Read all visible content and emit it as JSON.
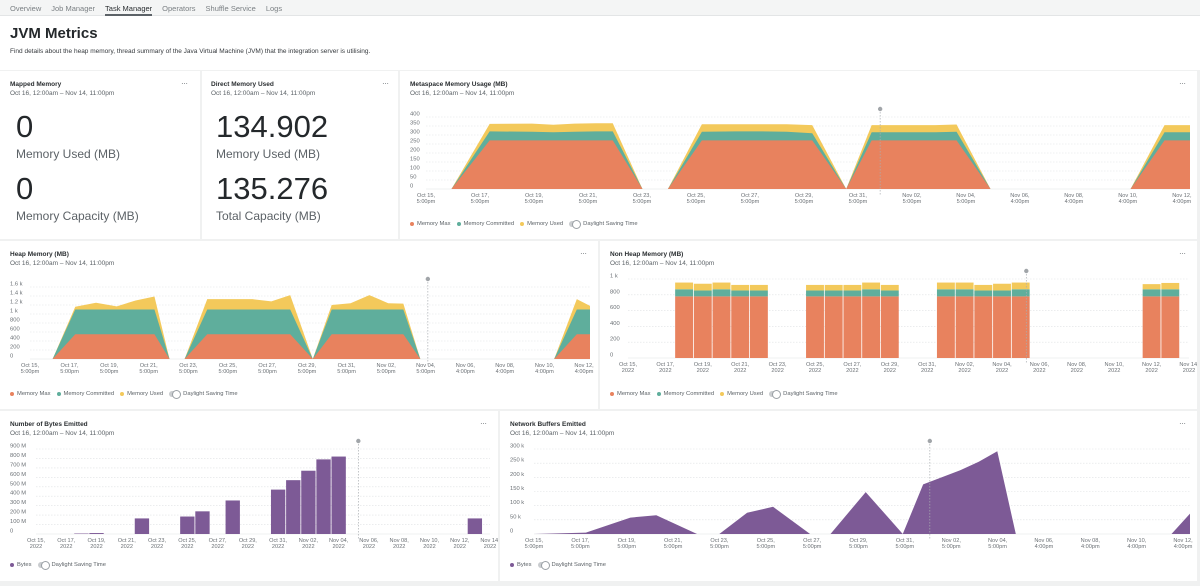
{
  "tabs": [
    {
      "label": "Overview",
      "active": false
    },
    {
      "label": "Job Manager",
      "active": false
    },
    {
      "label": "Task Manager",
      "active": true
    },
    {
      "label": "Operators",
      "active": false
    },
    {
      "label": "Shuffle Service",
      "active": false
    },
    {
      "label": "Logs",
      "active": false
    }
  ],
  "header": {
    "title": "JVM Metrics",
    "description": "Find details about the heap memory, thread summary of the Java Virtual Machine (JVM) that the integration server is utilising."
  },
  "colors": {
    "memory_max": "#e8825e",
    "memory_committed": "#5fae9c",
    "memory_used": "#f3c95b",
    "bytes": "#7d5a96",
    "grid": "#dfe1e3",
    "axis_text": "#6b7075"
  },
  "date_range": "Oct 16, 12:00am – Nov 14, 11:00pm",
  "more_label": "···",
  "toggle_label": "Daylight Saving Time",
  "mapped_memory": {
    "title": "Mapped Memory",
    "value1": "0",
    "label1": "Memory Used (MB)",
    "value2": "0",
    "label2": "Memory Capacity (MB)"
  },
  "direct_memory": {
    "title": "Direct Memory Used",
    "value1": "134.902",
    "label1": "Memory Used (MB)",
    "value2": "135.276",
    "label2": "Total Capacity (MB)"
  },
  "chart_data": [
    {
      "id": "metaspace",
      "type": "area",
      "title": "Metaspace Memory Usage (MB)",
      "subtitle": "Oct 16, 12:00am – Nov 14, 11:00pm",
      "ylim": [
        0,
        400
      ],
      "yticks": [
        "0",
        "50",
        "100",
        "150",
        "200",
        "250",
        "300",
        "350",
        "400"
      ],
      "ytick_values": [
        0,
        50,
        100,
        150,
        200,
        250,
        300,
        350,
        400
      ],
      "xticks": [
        [
          "Oct 15,",
          "5:00pm"
        ],
        [
          "Oct 17,",
          "5:00pm"
        ],
        [
          "Oct 19,",
          "5:00pm"
        ],
        [
          "Oct 21,",
          "5:00pm"
        ],
        [
          "Oct 23,",
          "5:00pm"
        ],
        [
          "Oct 25,",
          "5:00pm"
        ],
        [
          "Oct 27,",
          "5:00pm"
        ],
        [
          "Oct 29,",
          "5:00pm"
        ],
        [
          "Oct 31,",
          "5:00pm"
        ],
        [
          "Nov 02,",
          "5:00pm"
        ],
        [
          "Nov 04,",
          "5:00pm"
        ],
        [
          "Nov 06,",
          "4:00pm"
        ],
        [
          "Nov 08,",
          "4:00pm"
        ],
        [
          "Nov 10,",
          "4:00pm"
        ],
        [
          "Nov 12,",
          "4:00pm"
        ]
      ],
      "marker_x": 10.7,
      "segments": [
        {
          "x": [
            0.6,
            1.5,
            2.5,
            3.0,
            3.5,
            4.0,
            4.4,
            5.1
          ],
          "max": [
            0,
            270,
            270,
            270,
            270,
            270,
            270,
            0
          ],
          "committed": [
            0,
            50,
            48,
            45,
            48,
            50,
            50,
            0
          ],
          "used": [
            0,
            42,
            45,
            42,
            45,
            45,
            45,
            0
          ]
        },
        {
          "x": [
            5.7,
            6.5,
            7.3,
            7.9,
            8.5,
            9.1,
            9.9
          ],
          "max": [
            0,
            270,
            270,
            270,
            270,
            270,
            0
          ],
          "committed": [
            0,
            48,
            50,
            50,
            48,
            40,
            0
          ],
          "used": [
            0,
            42,
            40,
            40,
            42,
            45,
            0
          ]
        },
        {
          "x": [
            9.9,
            10.5,
            11.3,
            12.0,
            12.5,
            13.3
          ],
          "max": [
            0,
            270,
            270,
            270,
            270,
            0
          ],
          "committed": [
            0,
            45,
            45,
            45,
            48,
            0
          ],
          "used": [
            0,
            40,
            40,
            40,
            40,
            0
          ]
        },
        {
          "x": [
            16.6,
            17.4,
            18.0
          ],
          "max": [
            0,
            270,
            270
          ],
          "committed": [
            0,
            45,
            45
          ],
          "used": [
            0,
            40,
            40
          ]
        }
      ],
      "xlim": [
        0,
        18.0
      ],
      "legend": [
        "Memory Max",
        "Memory Committed",
        "Memory Used"
      ]
    },
    {
      "id": "heap",
      "type": "area",
      "title": "Heap Memory (MB)",
      "subtitle": "Oct 16, 12:00am – Nov 14, 11:00pm",
      "ylim": [
        0,
        1600
      ],
      "yticks": [
        "0",
        "200",
        "400",
        "600",
        "800",
        "1 k",
        "1.2 k",
        "1.4 k",
        "1.6 k"
      ],
      "ytick_values": [
        0,
        200,
        400,
        600,
        800,
        1000,
        1200,
        1400,
        1600
      ],
      "xticks": [
        [
          "Oct 15,",
          "5:00pm"
        ],
        [
          "Oct 17,",
          "5:00pm"
        ],
        [
          "Oct 19,",
          "5:00pm"
        ],
        [
          "Oct 21,",
          "5:00pm"
        ],
        [
          "Oct 23,",
          "5:00pm"
        ],
        [
          "Oct 25,",
          "5:00pm"
        ],
        [
          "Oct 27,",
          "5:00pm"
        ],
        [
          "Oct 29,",
          "5:00pm"
        ],
        [
          "Oct 31,",
          "5:00pm"
        ],
        [
          "Nov 02,",
          "5:00pm"
        ],
        [
          "Nov 04,",
          "5:00pm"
        ],
        [
          "Nov 06,",
          "4:00pm"
        ],
        [
          "Nov 08,",
          "4:00pm"
        ],
        [
          "Nov 10,",
          "4:00pm"
        ],
        [
          "Nov 12,",
          "4:00pm"
        ]
      ],
      "marker_x": 10.55,
      "segments": [
        {
          "x": [
            0.6,
            1.2,
            1.75,
            2.3,
            2.8,
            3.3,
            3.7
          ],
          "max": [
            0,
            550,
            550,
            550,
            550,
            550,
            0
          ],
          "committed": [
            0,
            550,
            550,
            550,
            550,
            550,
            0
          ],
          "used": [
            0,
            60,
            150,
            70,
            200,
            290,
            0
          ]
        },
        {
          "x": [
            4.1,
            4.7,
            5.3,
            5.9,
            6.4,
            6.9,
            7.5
          ],
          "max": [
            0,
            550,
            550,
            550,
            550,
            550,
            0
          ],
          "committed": [
            0,
            550,
            550,
            550,
            550,
            550,
            0
          ],
          "used": [
            0,
            230,
            230,
            230,
            180,
            320,
            0
          ]
        },
        {
          "x": [
            7.5,
            8.0,
            8.5,
            9.0,
            9.5,
            9.9,
            10.35
          ],
          "max": [
            0,
            550,
            550,
            550,
            550,
            550,
            0
          ],
          "committed": [
            0,
            550,
            550,
            550,
            550,
            550,
            0
          ],
          "used": [
            0,
            100,
            140,
            320,
            140,
            130,
            0
          ]
        },
        {
          "x": [
            13.9,
            14.5,
            14.85
          ],
          "max": [
            0,
            550,
            550
          ],
          "committed": [
            0,
            550,
            550
          ],
          "used": [
            0,
            230,
            80
          ]
        }
      ],
      "xlim": [
        0,
        14.85
      ],
      "legend": [
        "Memory Max",
        "Memory Committed",
        "Memory Used"
      ]
    },
    {
      "id": "nonheap",
      "type": "bar",
      "stacked": true,
      "title": "Non Heap Memory (MB)",
      "subtitle": "Oct 16, 12:00am – Nov 14, 11:00pm",
      "ylim": [
        0,
        1000
      ],
      "yticks": [
        "0",
        "200",
        "400",
        "600",
        "800",
        "1 k"
      ],
      "ytick_values": [
        0,
        200,
        400,
        600,
        800,
        1000
      ],
      "xticks": [
        [
          "Oct 15,",
          "2022"
        ],
        [
          "Oct 17,",
          "2022"
        ],
        [
          "Oct 19,",
          "2022"
        ],
        [
          "Oct 21,",
          "2022"
        ],
        [
          "Oct 23,",
          "2022"
        ],
        [
          "Oct 25,",
          "2022"
        ],
        [
          "Oct 27,",
          "2022"
        ],
        [
          "Oct 29,",
          "2022"
        ],
        [
          "Oct 31,",
          "2022"
        ],
        [
          "Nov 02,",
          "2022"
        ],
        [
          "Nov 04,",
          "2022"
        ],
        [
          "Nov 06,",
          "2022"
        ],
        [
          "Nov 08,",
          "2022"
        ],
        [
          "Nov 10,",
          "2022"
        ],
        [
          "Nov 12,",
          "2022"
        ],
        [
          "Nov 14,",
          "2022"
        ]
      ],
      "marker_x": 10.65,
      "bars": [
        {
          "x": 1.5,
          "max": 780,
          "committed": 90,
          "used": 85
        },
        {
          "x": 2.0,
          "max": 780,
          "committed": 75,
          "used": 85
        },
        {
          "x": 2.5,
          "max": 780,
          "committed": 90,
          "used": 85
        },
        {
          "x": 3.0,
          "max": 780,
          "committed": 75,
          "used": 70
        },
        {
          "x": 3.5,
          "max": 780,
          "committed": 75,
          "used": 70
        },
        {
          "x": 5.0,
          "max": 780,
          "committed": 75,
          "used": 70
        },
        {
          "x": 5.5,
          "max": 780,
          "committed": 75,
          "used": 70
        },
        {
          "x": 6.0,
          "max": 780,
          "committed": 75,
          "used": 70
        },
        {
          "x": 6.5,
          "max": 780,
          "committed": 90,
          "used": 85
        },
        {
          "x": 7.0,
          "max": 780,
          "committed": 75,
          "used": 70
        },
        {
          "x": 8.5,
          "max": 780,
          "committed": 90,
          "used": 85
        },
        {
          "x": 9.0,
          "max": 780,
          "committed": 90,
          "used": 85
        },
        {
          "x": 9.5,
          "max": 780,
          "committed": 75,
          "used": 70
        },
        {
          "x": 10.0,
          "max": 780,
          "committed": 75,
          "used": 85
        },
        {
          "x": 10.5,
          "max": 780,
          "committed": 90,
          "used": 85
        },
        {
          "x": 14.0,
          "max": 780,
          "committed": 90,
          "used": 65
        },
        {
          "x": 14.5,
          "max": 780,
          "committed": 90,
          "used": 80
        }
      ],
      "xlim": [
        0,
        15.0
      ],
      "legend": [
        "Memory Max",
        "Memory Committed",
        "Memory Used"
      ]
    },
    {
      "id": "bytes",
      "type": "bar",
      "title": "Number of Bytes Emitted",
      "subtitle": "Oct 16, 12:00am – Nov 14, 11:00pm",
      "ylim": [
        0,
        900
      ],
      "yunit": "M",
      "yticks": [
        "0",
        "100 M",
        "200 M",
        "300 M",
        "400 M",
        "500 M",
        "600 M",
        "700 M",
        "800 M",
        "900 M"
      ],
      "ytick_values": [
        0,
        100,
        200,
        300,
        400,
        500,
        600,
        700,
        800,
        900
      ],
      "xticks": [
        [
          "Oct 15,",
          "2022"
        ],
        [
          "Oct 17,",
          "2022"
        ],
        [
          "Oct 19,",
          "2022"
        ],
        [
          "Oct 21,",
          "2022"
        ],
        [
          "Oct 23,",
          "2022"
        ],
        [
          "Oct 25,",
          "2022"
        ],
        [
          "Oct 27,",
          "2022"
        ],
        [
          "Oct 29,",
          "2022"
        ],
        [
          "Oct 31,",
          "2022"
        ],
        [
          "Nov 02,",
          "2022"
        ],
        [
          "Nov 04,",
          "2022"
        ],
        [
          "Nov 06,",
          "2022"
        ],
        [
          "Nov 08,",
          "2022"
        ],
        [
          "Nov 10,",
          "2022"
        ],
        [
          "Nov 12,",
          "2022"
        ],
        [
          "Nov 14,",
          "2022"
        ]
      ],
      "marker_x": 10.65,
      "bars": [
        {
          "x": 1.5,
          "value": 5
        },
        {
          "x": 2.0,
          "value": 10
        },
        {
          "x": 3.5,
          "value": 165
        },
        {
          "x": 5.0,
          "value": 185
        },
        {
          "x": 5.5,
          "value": 240
        },
        {
          "x": 6.5,
          "value": 355
        },
        {
          "x": 8.0,
          "value": 470
        },
        {
          "x": 8.5,
          "value": 570
        },
        {
          "x": 9.0,
          "value": 670
        },
        {
          "x": 9.5,
          "value": 790
        },
        {
          "x": 10.0,
          "value": 820
        },
        {
          "x": 14.5,
          "value": 165
        }
      ],
      "xlim": [
        0,
        15.0
      ],
      "legend": [
        "Bytes"
      ]
    },
    {
      "id": "buffers",
      "type": "area",
      "title": "Network Buffers Emitted",
      "subtitle": "Oct 16, 12:00am – Nov 14, 11:00pm",
      "ylim": [
        0,
        300
      ],
      "yunit": "k",
      "yticks": [
        "0",
        "50 k",
        "100 k",
        "150 k",
        "200 k",
        "250 k",
        "300 k"
      ],
      "ytick_values": [
        0,
        50,
        100,
        150,
        200,
        250,
        300
      ],
      "xticks": [
        [
          "Oct 15,",
          "5:00pm"
        ],
        [
          "Oct 17,",
          "5:00pm"
        ],
        [
          "Oct 19,",
          "5:00pm"
        ],
        [
          "Oct 21,",
          "5:00pm"
        ],
        [
          "Oct 23,",
          "5:00pm"
        ],
        [
          "Oct 25,",
          "5:00pm"
        ],
        [
          "Oct 27,",
          "5:00pm"
        ],
        [
          "Oct 29,",
          "5:00pm"
        ],
        [
          "Oct 31,",
          "5:00pm"
        ],
        [
          "Nov 02,",
          "5:00pm"
        ],
        [
          "Nov 04,",
          "5:00pm"
        ],
        [
          "Nov 06,",
          "4:00pm"
        ],
        [
          "Nov 08,",
          "4:00pm"
        ],
        [
          "Nov 10,",
          "4:00pm"
        ],
        [
          "Nov 12,",
          "4:00pm"
        ]
      ],
      "marker_x": 10.68,
      "segments": [
        {
          "x": [
            0,
            1.4,
            2.6,
            3.3,
            4.4
          ],
          "values": [
            0,
            5,
            58,
            66,
            0
          ]
        },
        {
          "x": [
            5.0,
            5.75,
            6.45,
            7.45
          ],
          "values": [
            0,
            75,
            96,
            0
          ]
        },
        {
          "x": [
            8.0,
            8.95,
            9.95
          ],
          "values": [
            0,
            148,
            0
          ]
        },
        {
          "x": [
            9.95,
            10.5,
            11.5,
            12.0,
            12.5,
            13.0
          ],
          "values": [
            0,
            175,
            225,
            255,
            292,
            0
          ]
        },
        {
          "x": [
            17.2,
            17.7
          ],
          "values": [
            0,
            72
          ]
        }
      ],
      "xlim": [
        0,
        17.7
      ],
      "legend": [
        "Bytes"
      ]
    }
  ]
}
